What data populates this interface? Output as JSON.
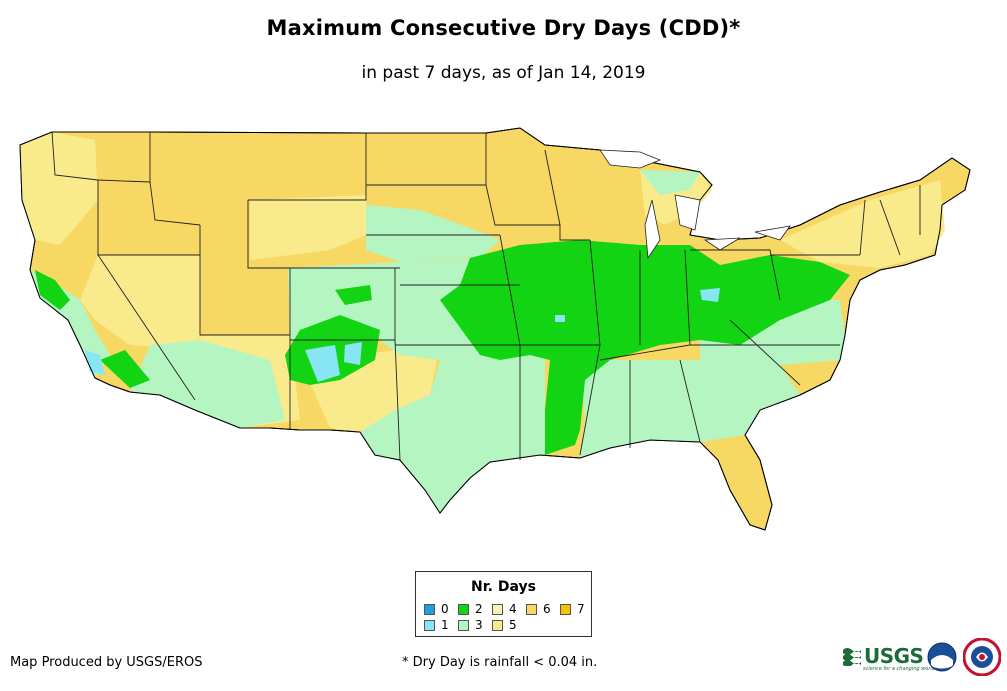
{
  "title": "Maximum Consecutive Dry Days (CDD)*",
  "subtitle": "in past 7 days, as of Jan 14, 2019",
  "legend": {
    "title": "Nr. Days",
    "items": [
      {
        "label": "0",
        "color": "#1f9fe0"
      },
      {
        "label": "1",
        "color": "#88e6f2"
      },
      {
        "label": "2",
        "color": "#12d412"
      },
      {
        "label": "3",
        "color": "#b4f5c2"
      },
      {
        "label": "4",
        "color": "#f6f5b4"
      },
      {
        "label": "5",
        "color": "#f9ea8c"
      },
      {
        "label": "6",
        "color": "#f7d865"
      },
      {
        "label": "7",
        "color": "#f5c200"
      }
    ]
  },
  "credit": "Map Produced by USGS/EROS",
  "footnote": "* Dry Day is rainfall < 0.04 in.",
  "logos": {
    "usgs_text": "USGS",
    "usgs_tagline": "science for a changing world"
  },
  "colors": {
    "days0": "#1f9fe0",
    "days1": "#88e6f2",
    "days2": "#12d412",
    "days3": "#b4f5c2",
    "days4": "#f6f5b4",
    "days5": "#f9ea8c",
    "days6": "#f7d865",
    "days7": "#f5c200"
  }
}
